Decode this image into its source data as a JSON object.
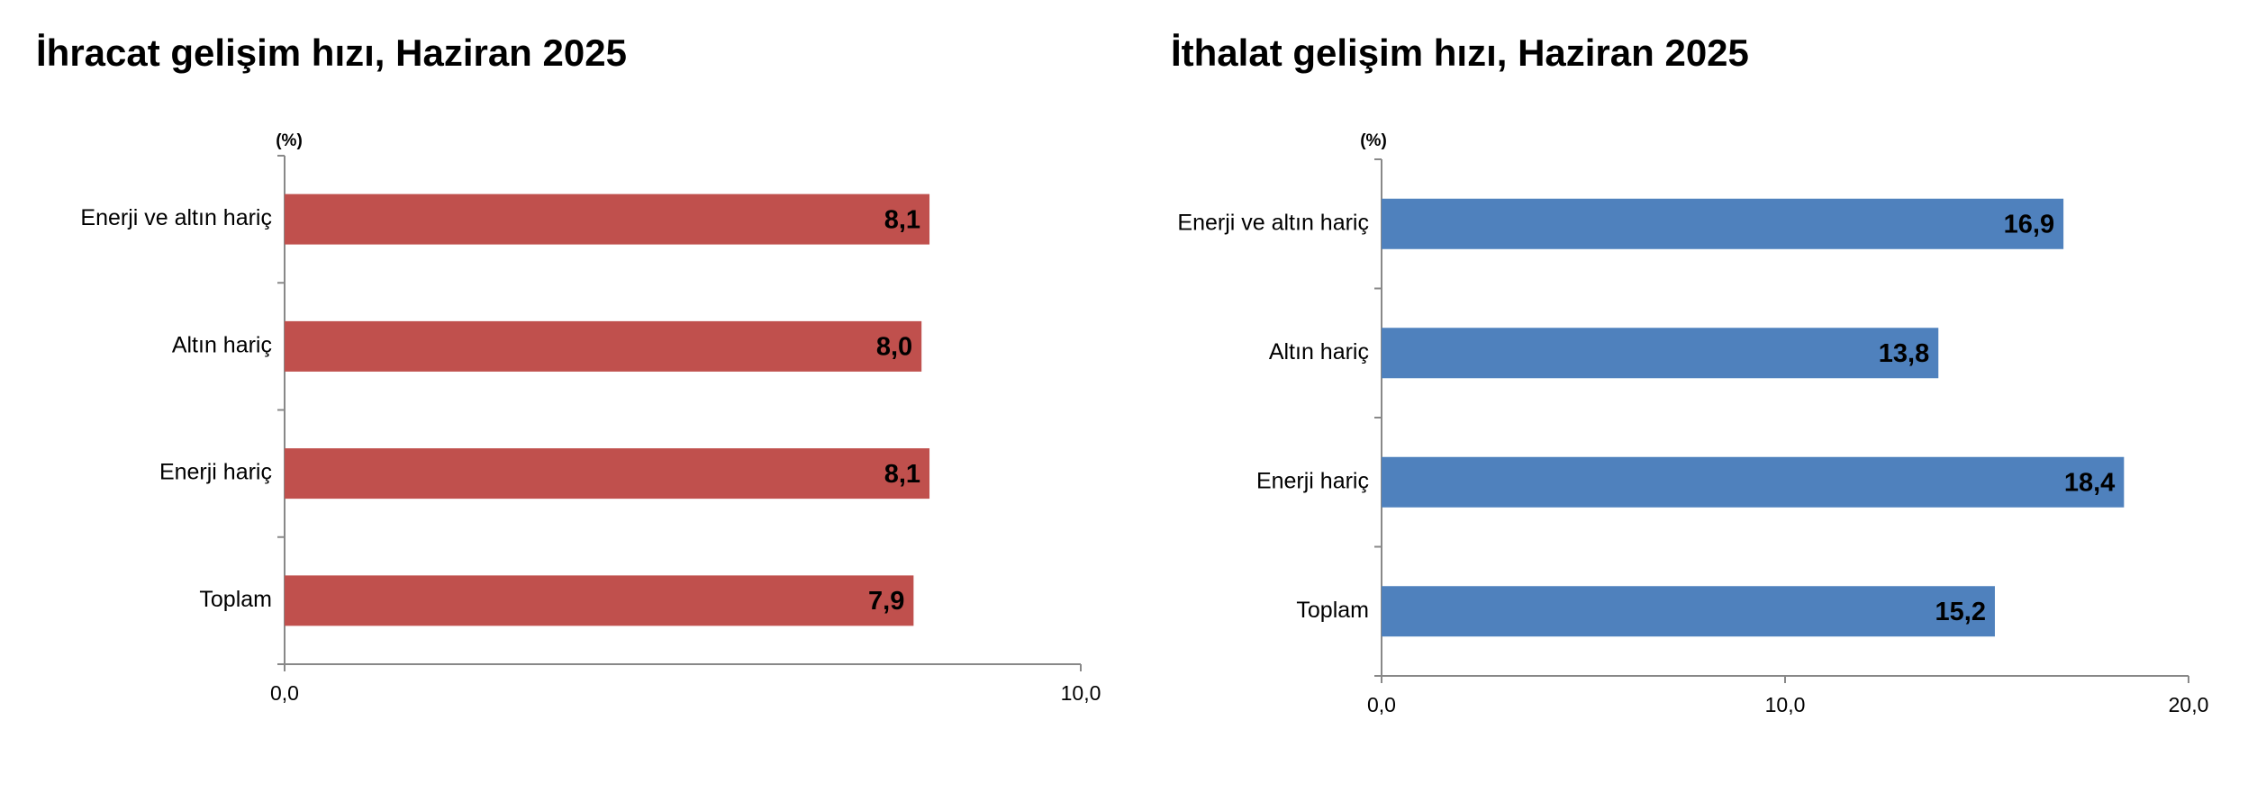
{
  "chart_data": [
    {
      "type": "barh",
      "title": "İhracat gelişim hızı, Haziran 2025",
      "unit_label": "(%)",
      "categories": [
        "Enerji ve altın hariç",
        "Altın hariç",
        "Enerji hariç",
        "Toplam"
      ],
      "values": [
        8.1,
        8.0,
        8.1,
        7.9
      ],
      "value_labels": [
        "8,1",
        "8,0",
        "8,1",
        "7,9"
      ],
      "color": "#c0504d",
      "xlim": [
        0,
        10
      ],
      "xticks": [
        {
          "value": 0,
          "label": "0,0"
        },
        {
          "value": 10,
          "label": "10,0"
        }
      ]
    },
    {
      "type": "barh",
      "title": "İthalat gelişim hızı, Haziran 2025",
      "unit_label": "(%)",
      "categories": [
        "Enerji ve altın hariç",
        "Altın hariç",
        "Enerji hariç",
        "Toplam"
      ],
      "values": [
        16.9,
        13.8,
        18.4,
        15.2
      ],
      "value_labels": [
        "16,9",
        "13,8",
        "18,4",
        "15,2"
      ],
      "color": "#4f81bd",
      "xlim": [
        0,
        20
      ],
      "xticks": [
        {
          "value": 0,
          "label": "0,0"
        },
        {
          "value": 10,
          "label": "10,0"
        },
        {
          "value": 20,
          "label": "20,0"
        }
      ]
    }
  ]
}
